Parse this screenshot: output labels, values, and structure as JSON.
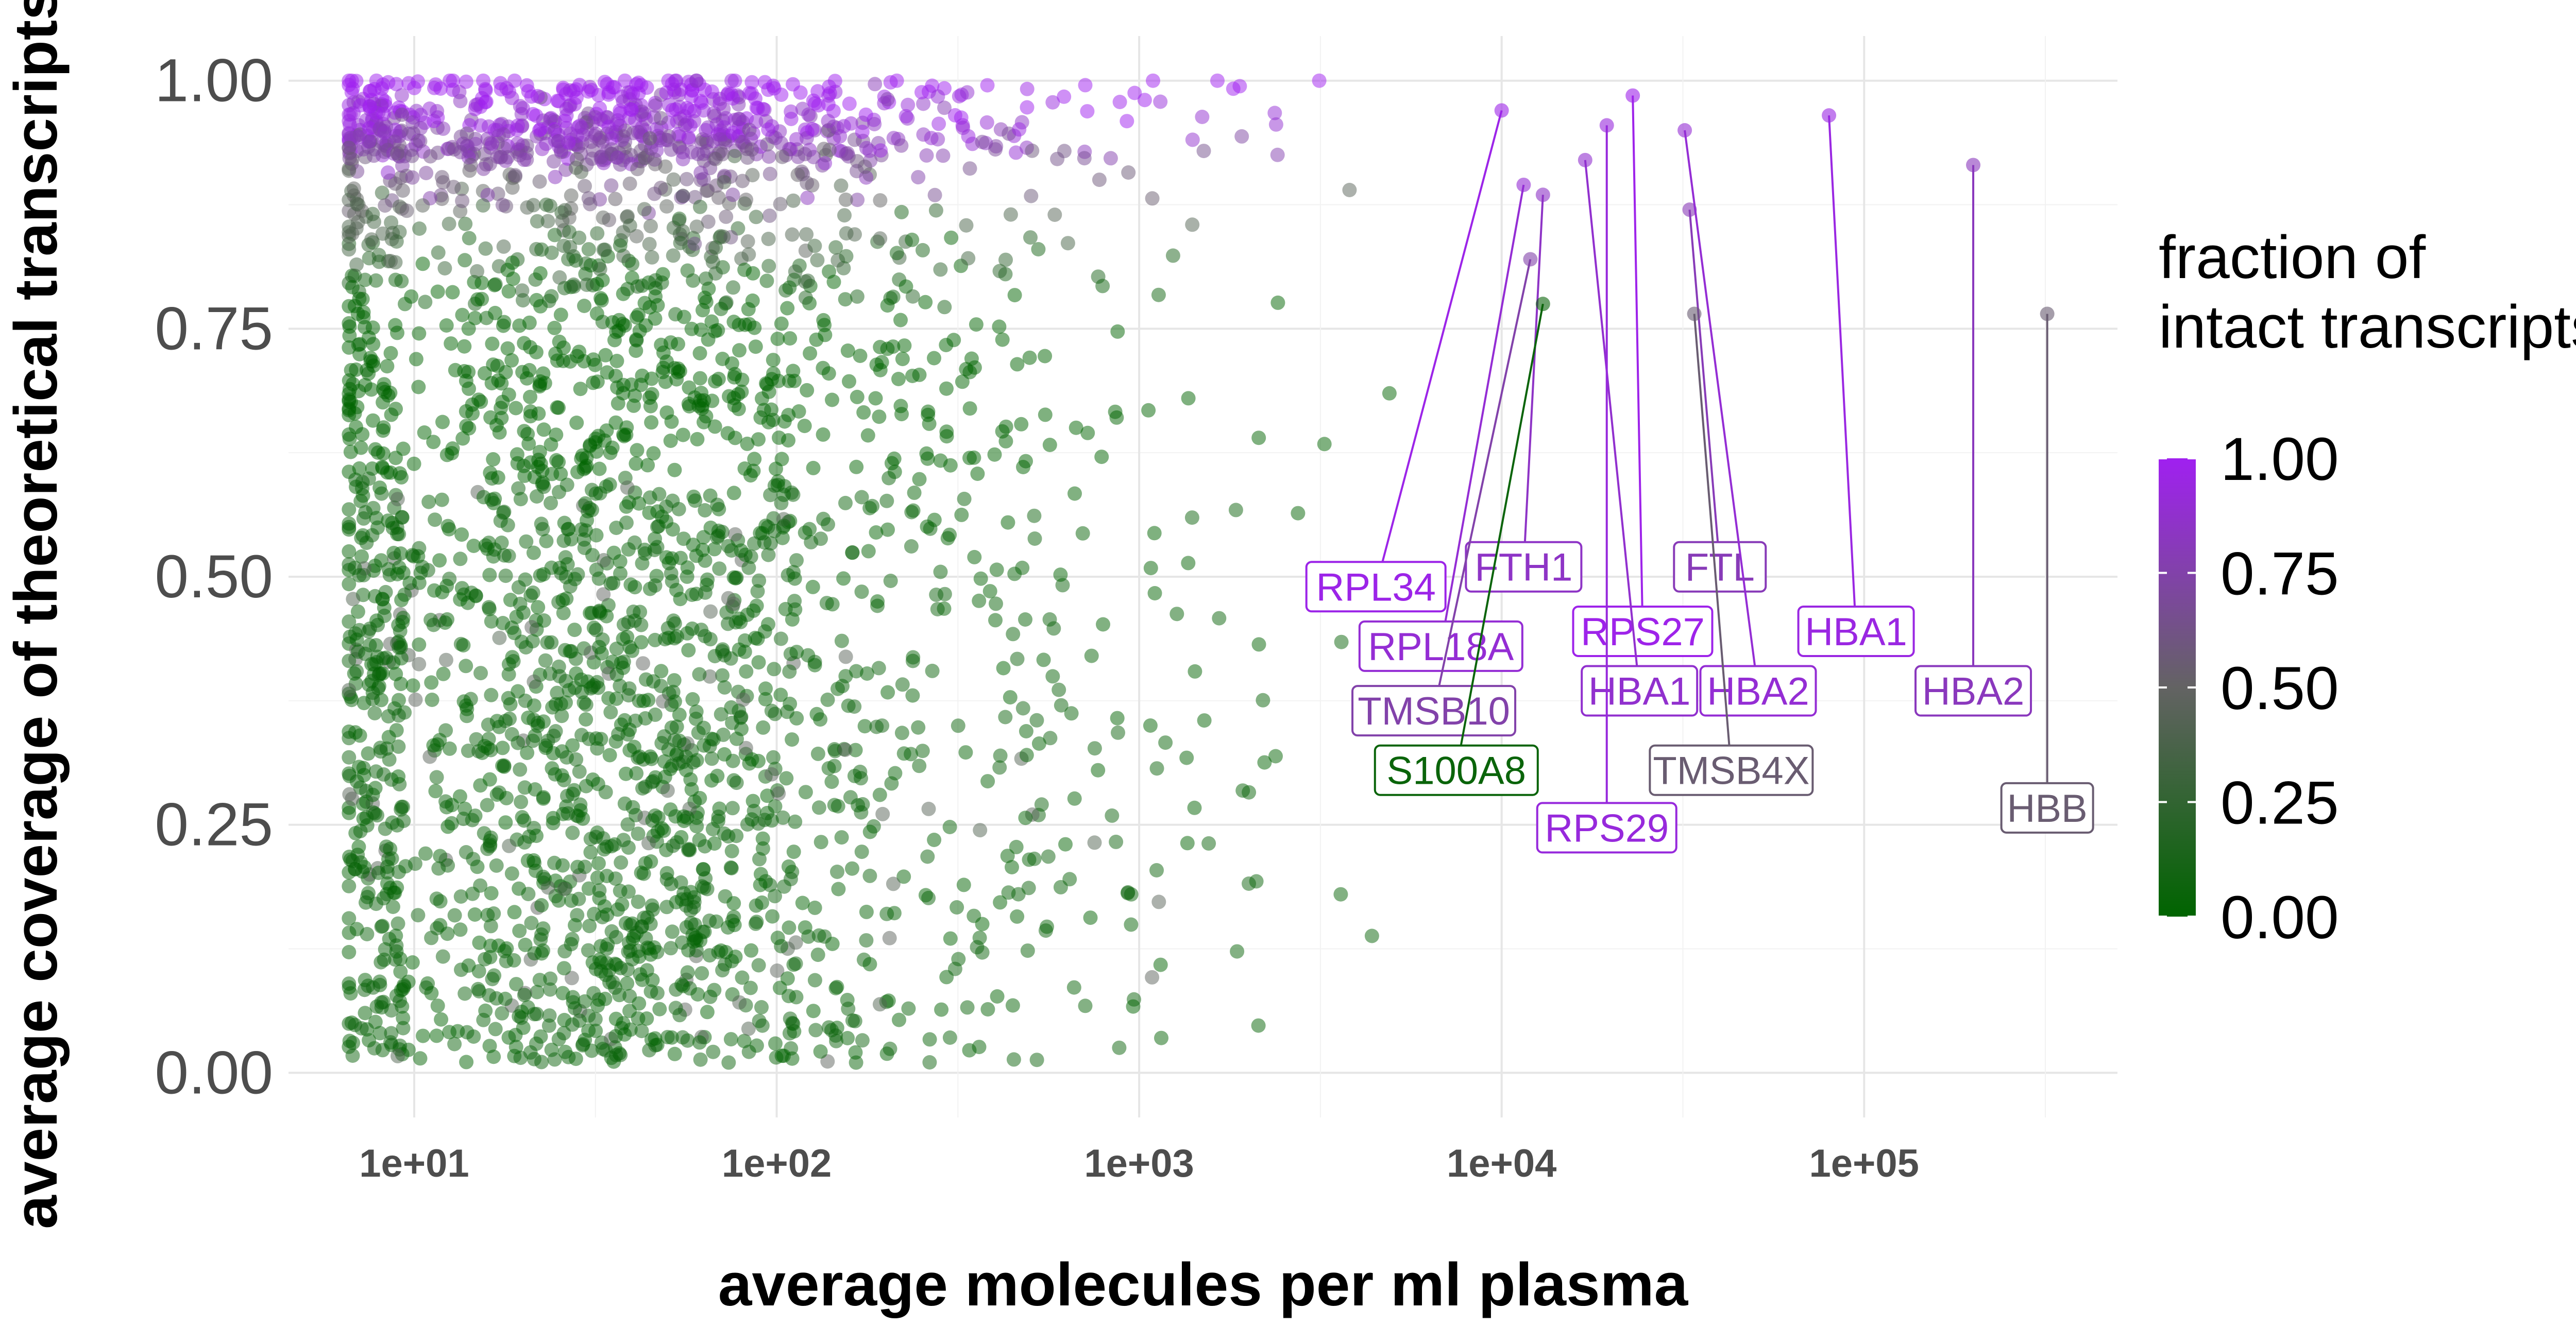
{
  "chart_data": {
    "type": "scatter",
    "xlabel": "average molecules per ml plasma",
    "ylabel": "average coverage of theoretical transcripts",
    "x_scale": "log10",
    "xlim": [
      4.5,
      500000
    ],
    "ylim": [
      -0.045,
      1.045
    ],
    "x_ticks": [
      10,
      100,
      1000,
      10000,
      100000
    ],
    "x_tick_labels": [
      "1e+01",
      "1e+02",
      "1e+03",
      "1e+04",
      "1e+05"
    ],
    "y_ticks": [
      0,
      0.25,
      0.5,
      0.75,
      1.0
    ],
    "y_tick_labels": [
      "0.00",
      "0.25",
      "0.50",
      "0.75",
      "1.00"
    ],
    "grid": true,
    "legend": {
      "title": "fraction of\nintact transcripts",
      "title_lines": [
        "fraction of",
        "intact transcripts"
      ],
      "placement": "right",
      "colors": {
        "low": "#006400",
        "mid": "#636363",
        "high": "#a020f0"
      },
      "ticks": [
        0,
        0.25,
        0.5,
        0.75,
        1.0
      ],
      "tick_labels": [
        "0.00",
        "0.25",
        "0.50",
        "0.75",
        "1.00"
      ]
    },
    "point_color_low": "#006400",
    "point_color_high": "#a020f0",
    "background_points_note_count": 3200,
    "labeled_genes": [
      {
        "gene": "RPL34",
        "x": 10000,
        "y": 0.97,
        "fraction": 0.97,
        "label_x": 4500,
        "label_y": 0.49
      },
      {
        "gene": "FTH1",
        "x": 13000,
        "y": 0.885,
        "fraction": 0.85,
        "label_x": 11500,
        "label_y": 0.51
      },
      {
        "gene": "FTL",
        "x": 33000,
        "y": 0.87,
        "fraction": 0.8,
        "label_x": 40000,
        "label_y": 0.51
      },
      {
        "gene": "RPL18A",
        "x": 11500,
        "y": 0.895,
        "fraction": 0.9,
        "label_x": 6800,
        "label_y": 0.43
      },
      {
        "gene": "RPS27",
        "x": 23000,
        "y": 0.985,
        "fraction": 0.98,
        "label_x": 24500,
        "label_y": 0.445
      },
      {
        "gene": "HBA1",
        "x": 80000,
        "y": 0.965,
        "fraction": 0.95,
        "label_x": 95000,
        "label_y": 0.445
      },
      {
        "gene": "TMSB10",
        "x": 12000,
        "y": 0.82,
        "fraction": 0.75,
        "label_x": 6500,
        "label_y": 0.365
      },
      {
        "gene": "HBA1",
        "x": 17000,
        "y": 0.92,
        "fraction": 0.88,
        "label_x": 24000,
        "label_y": 0.385
      },
      {
        "gene": "HBA2",
        "x": 32000,
        "y": 0.95,
        "fraction": 0.9,
        "label_x": 51000,
        "label_y": 0.385
      },
      {
        "gene": "HBA2",
        "x": 200000,
        "y": 0.915,
        "fraction": 0.82,
        "label_x": 200000,
        "label_y": 0.385
      },
      {
        "gene": "S100A8",
        "x": 13000,
        "y": 0.775,
        "fraction": 0.05,
        "label_x": 7500,
        "label_y": 0.305
      },
      {
        "gene": "TMSB4X",
        "x": 34000,
        "y": 0.765,
        "fraction": 0.55,
        "label_x": 43000,
        "label_y": 0.305
      },
      {
        "gene": "RPS29",
        "x": 19500,
        "y": 0.955,
        "fraction": 0.93,
        "label_x": 19500,
        "label_y": 0.247
      },
      {
        "gene": "HBB",
        "x": 320000,
        "y": 0.765,
        "fraction": 0.55,
        "label_x": 320000,
        "label_y": 0.267
      }
    ]
  }
}
